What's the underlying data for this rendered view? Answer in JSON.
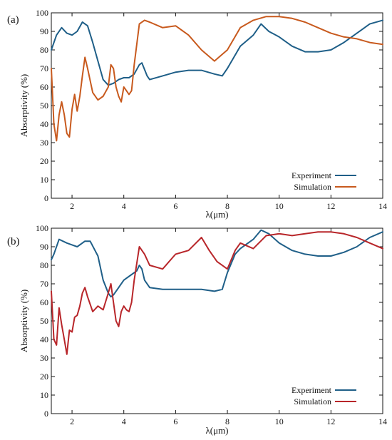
{
  "colors": {
    "exp": "#1f5f88",
    "simA": "#c85a1e",
    "simB": "#b8262a"
  },
  "chart_data": [
    {
      "type": "line",
      "panel_label": "(a)",
      "xlabel": "λ(μm)",
      "ylabel": "Absorptivity (%)",
      "xlim": [
        1.2,
        14
      ],
      "ylim": [
        0,
        100
      ],
      "xticks": [
        2,
        4,
        6,
        8,
        10,
        12,
        14
      ],
      "yticks": [
        0,
        10,
        20,
        30,
        40,
        50,
        60,
        70,
        80,
        90,
        100
      ],
      "legend_position": "bottom-right",
      "series": [
        {
          "name": "Experiment",
          "color": "#1f5f88",
          "x": [
            1.2,
            1.4,
            1.6,
            1.8,
            2.0,
            2.2,
            2.4,
            2.6,
            2.8,
            3.0,
            3.2,
            3.4,
            3.6,
            3.8,
            4.0,
            4.2,
            4.4,
            4.6,
            4.7,
            4.9,
            5.0,
            5.5,
            6.0,
            6.5,
            7.0,
            7.5,
            7.8,
            8.0,
            8.5,
            9.0,
            9.3,
            9.6,
            10.0,
            10.5,
            11.0,
            11.5,
            12.0,
            12.5,
            13.0,
            13.5,
            14.0
          ],
          "y": [
            80,
            88,
            92,
            89,
            88,
            90,
            95,
            93,
            84,
            74,
            64,
            61,
            62,
            64,
            65,
            65,
            67,
            72,
            73,
            66,
            64,
            66,
            68,
            69,
            69,
            67,
            66,
            70,
            82,
            88,
            94,
            90,
            87,
            82,
            79,
            79,
            80,
            84,
            89,
            94,
            96
          ]
        },
        {
          "name": "Simulation",
          "color": "#c85a1e",
          "x": [
            1.2,
            1.3,
            1.4,
            1.5,
            1.6,
            1.7,
            1.8,
            1.9,
            2.0,
            2.1,
            2.2,
            2.3,
            2.4,
            2.5,
            2.6,
            2.8,
            3.0,
            3.2,
            3.4,
            3.5,
            3.6,
            3.7,
            3.8,
            3.9,
            4.0,
            4.1,
            4.2,
            4.3,
            4.4,
            4.6,
            4.8,
            5.0,
            5.5,
            6.0,
            6.5,
            7.0,
            7.5,
            8.0,
            8.5,
            9.0,
            9.5,
            10.0,
            10.5,
            11.0,
            11.5,
            12.0,
            12.5,
            13.0,
            13.5,
            14.0
          ],
          "y": [
            70,
            40,
            31,
            45,
            52,
            45,
            35,
            33,
            48,
            56,
            47,
            55,
            66,
            76,
            70,
            57,
            53,
            55,
            60,
            72,
            70,
            60,
            55,
            52,
            60,
            58,
            56,
            58,
            72,
            94,
            96,
            95,
            92,
            93,
            88,
            80,
            74,
            80,
            92,
            96,
            98,
            98,
            97,
            95,
            92,
            89,
            87,
            86,
            84,
            83
          ]
        }
      ]
    },
    {
      "type": "line",
      "panel_label": "(b)",
      "xlabel": "λ(μm)",
      "ylabel": "Absorptivity (%)",
      "xlim": [
        1.2,
        14
      ],
      "ylim": [
        0,
        100
      ],
      "xticks": [
        2,
        4,
        6,
        8,
        10,
        12,
        14
      ],
      "yticks": [
        0,
        10,
        20,
        30,
        40,
        50,
        60,
        70,
        80,
        90,
        100
      ],
      "legend_position": "bottom-right",
      "series": [
        {
          "name": "Experiment",
          "color": "#1f5f88",
          "x": [
            1.2,
            1.3,
            1.5,
            1.8,
            2.0,
            2.2,
            2.5,
            2.7,
            3.0,
            3.2,
            3.4,
            3.5,
            3.6,
            3.8,
            4.0,
            4.3,
            4.5,
            4.6,
            4.7,
            4.8,
            5.0,
            5.5,
            6.0,
            6.5,
            7.0,
            7.5,
            7.8,
            8.0,
            8.3,
            8.5,
            9.0,
            9.3,
            9.6,
            10.0,
            10.5,
            11.0,
            11.5,
            12.0,
            12.5,
            13.0,
            13.5,
            14.0
          ],
          "y": [
            83,
            86,
            94,
            92,
            91,
            90,
            93,
            93,
            85,
            72,
            65,
            63,
            64,
            68,
            72,
            75,
            77,
            80,
            78,
            72,
            68,
            67,
            67,
            67,
            67,
            66,
            67,
            76,
            86,
            89,
            94,
            99,
            97,
            92,
            88,
            86,
            85,
            85,
            87,
            90,
            95,
            98
          ]
        },
        {
          "name": "Simulation",
          "color": "#b8262a",
          "x": [
            1.2,
            1.3,
            1.4,
            1.5,
            1.6,
            1.7,
            1.8,
            1.9,
            2.0,
            2.1,
            2.2,
            2.3,
            2.4,
            2.5,
            2.6,
            2.8,
            3.0,
            3.2,
            3.4,
            3.5,
            3.6,
            3.7,
            3.8,
            3.9,
            4.0,
            4.1,
            4.2,
            4.3,
            4.4,
            4.6,
            4.8,
            5.0,
            5.5,
            6.0,
            6.5,
            7.0,
            7.3,
            7.6,
            8.0,
            8.3,
            8.5,
            9.0,
            9.5,
            10.0,
            10.5,
            11.0,
            11.5,
            12.0,
            12.5,
            13.0,
            13.5,
            14.0
          ],
          "y": [
            66,
            40,
            37,
            57,
            48,
            40,
            32,
            45,
            44,
            52,
            53,
            58,
            65,
            68,
            63,
            55,
            58,
            56,
            65,
            70,
            60,
            50,
            47,
            55,
            58,
            56,
            55,
            60,
            72,
            90,
            86,
            80,
            78,
            86,
            88,
            95,
            88,
            82,
            78,
            88,
            92,
            89,
            96,
            97,
            96,
            97,
            98,
            98,
            97,
            95,
            92,
            89
          ]
        }
      ]
    }
  ]
}
